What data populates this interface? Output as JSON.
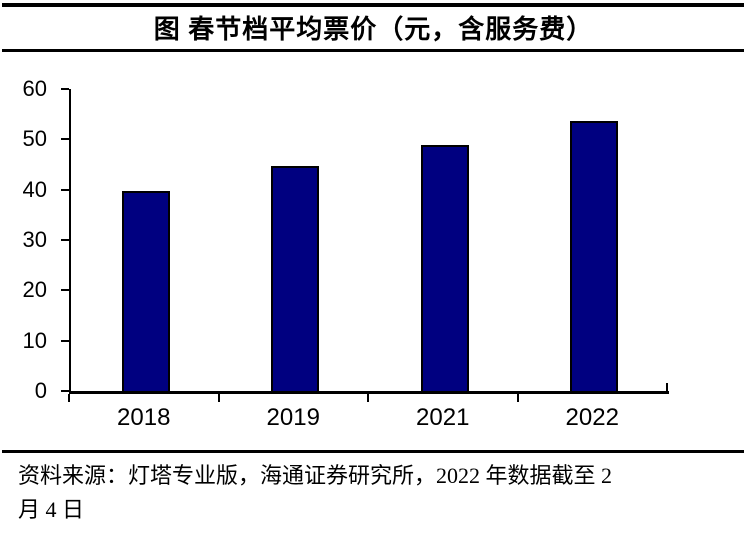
{
  "figure": {
    "title": "图 春节档平均票价（元，含服务费）",
    "source": {
      "lines": [
        "资料来源：灯塔专业版，海通证券研究所，2022 年数据截至 2",
        "月 4 日"
      ]
    }
  },
  "chart_data": {
    "type": "bar",
    "title": "图 春节档平均票价（元，含服务费）",
    "categories": [
      "2018",
      "2019",
      "2021",
      "2022"
    ],
    "values": [
      39.7,
      44.8,
      48.9,
      53.6
    ],
    "xlabel": "",
    "ylabel": "",
    "ylim": [
      0,
      60
    ],
    "yticks": [
      0,
      10,
      20,
      30,
      40,
      50,
      60
    ],
    "grid": false,
    "legend": "none",
    "bar_color": "#000080",
    "bar_border_color": "#000000",
    "axis_color": "#000000"
  }
}
